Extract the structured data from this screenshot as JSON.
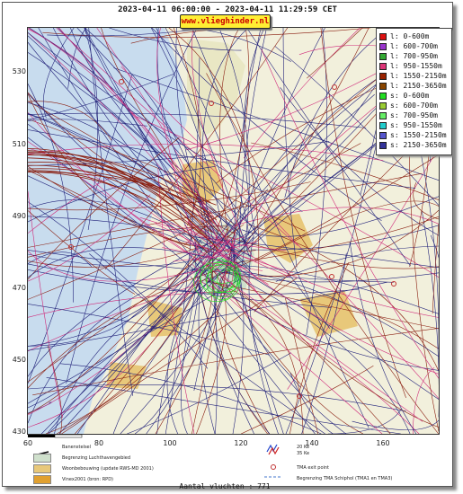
{
  "title": "2023-04-11 06:00:00 - 2023-04-11 11:29:59 CET",
  "site": "www.vlieghinder.nl",
  "y_ticks": [
    "530",
    "510",
    "490",
    "470",
    "450",
    "430"
  ],
  "x_ticks": [
    "60",
    "80",
    "100",
    "120",
    "140",
    "160"
  ],
  "legend": [
    {
      "label": "l: 0-600m",
      "color": "#dd1111"
    },
    {
      "label": "l: 600-700m",
      "color": "#9933cc"
    },
    {
      "label": "l: 700-950m",
      "color": "#33aa33"
    },
    {
      "label": "l: 950-1550m",
      "color": "#dd3377"
    },
    {
      "label": "l: 1550-2150m",
      "color": "#992200"
    },
    {
      "label": "l: 2150-3650m",
      "color": "#884400"
    },
    {
      "label": "s: 0-600m",
      "color": "#22dd22"
    },
    {
      "label": "s: 600-700m",
      "color": "#99cc33"
    },
    {
      "label": "s: 700-950m",
      "color": "#66ee66"
    },
    {
      "label": "s: 950-1550m",
      "color": "#22cccc"
    },
    {
      "label": "s: 1550-2150m",
      "color": "#5555cc"
    },
    {
      "label": "s: 2150-3650m",
      "color": "#333399"
    }
  ],
  "key": {
    "runways": "Banenstelsel",
    "airport_boundary": "Begrenzing Luchthavengebied",
    "residential": "Woonbebouwing (update RWS-MD 2001)",
    "vinex": "Vinex2001 (bron: RPD)",
    "ke20": "20 Ke",
    "ke35": "35 Ke",
    "tma_exit": "TMA exit point",
    "tma_boundary": "Begrenzing TMA Schiphol  (TMA1 en TMA3)"
  },
  "colors": {
    "water": "#c8dcee",
    "land": "#f2f0dc",
    "urban": "#e8c87a",
    "airport": "#cfe0cc",
    "track_dark": "#22227a",
    "track_red": "#8a1e10",
    "track_pink": "#d02a7a",
    "track_green": "#22dd22"
  },
  "count": "Aantal vluchten : 771"
}
